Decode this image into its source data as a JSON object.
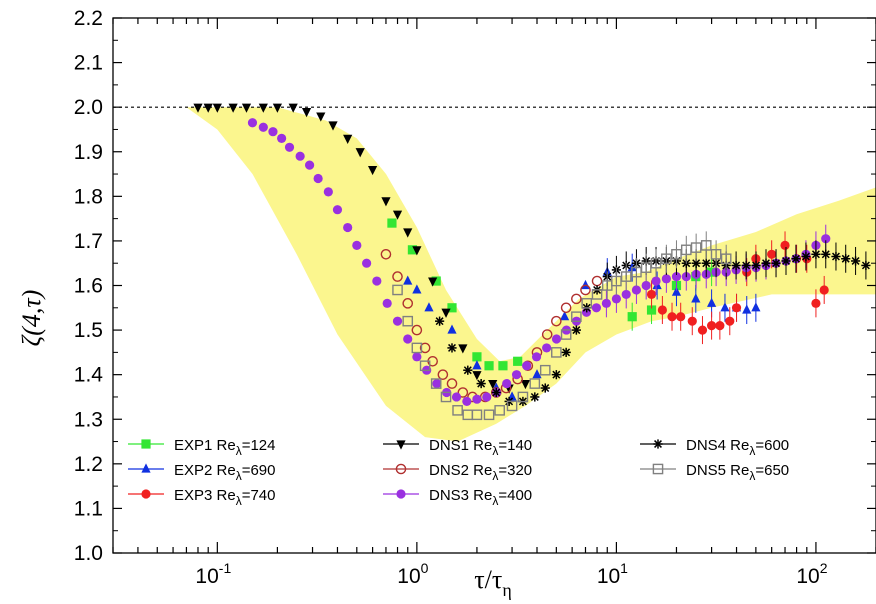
{
  "chart_data": {
    "type": "scatter",
    "title": "",
    "xlabel": "τ/τη",
    "ylabel": "ζ(4,τ)",
    "xscale": "log",
    "xlim": [
      0.03,
      200
    ],
    "ylim": [
      1.0,
      2.2
    ],
    "x_ticks": [
      {
        "value": 0.1,
        "mant": "10",
        "exp": "-1"
      },
      {
        "value": 1,
        "mant": "10",
        "exp": "0"
      },
      {
        "value": 10,
        "mant": "10",
        "exp": "1"
      },
      {
        "value": 100,
        "mant": "10",
        "exp": "2"
      }
    ],
    "y_ticks": [
      "1.0",
      "1.1",
      "1.2",
      "1.3",
      "1.4",
      "1.5",
      "1.6",
      "1.7",
      "1.8",
      "1.9",
      "2.0",
      "2.1",
      "2.2"
    ],
    "reference_line": {
      "y": 2.0,
      "style": "dotted"
    },
    "band": {
      "color": "#fbf68e",
      "upper": [
        [
          0.07,
          2.0
        ],
        [
          0.2,
          2.0
        ],
        [
          0.35,
          1.97
        ],
        [
          0.5,
          1.93
        ],
        [
          0.7,
          1.85
        ],
        [
          1.0,
          1.73
        ],
        [
          1.4,
          1.59
        ],
        [
          2.0,
          1.48
        ],
        [
          2.6,
          1.43
        ],
        [
          3.3,
          1.44
        ],
        [
          4.5,
          1.5
        ],
        [
          6.5,
          1.57
        ],
        [
          10,
          1.62
        ],
        [
          14,
          1.63
        ],
        [
          20,
          1.66
        ],
        [
          30,
          1.69
        ],
        [
          50,
          1.72
        ],
        [
          80,
          1.76
        ],
        [
          130,
          1.79
        ],
        [
          200,
          1.82
        ]
      ],
      "lower": [
        [
          200,
          1.58
        ],
        [
          100,
          1.58
        ],
        [
          60,
          1.58
        ],
        [
          30,
          1.55
        ],
        [
          20,
          1.53
        ],
        [
          15,
          1.52
        ],
        [
          10,
          1.49
        ],
        [
          7,
          1.45
        ],
        [
          5,
          1.38
        ],
        [
          3.5,
          1.33
        ],
        [
          2.5,
          1.29
        ],
        [
          1.6,
          1.25
        ],
        [
          1.1,
          1.26
        ],
        [
          0.7,
          1.33
        ],
        [
          0.4,
          1.49
        ],
        [
          0.25,
          1.67
        ],
        [
          0.15,
          1.85
        ],
        [
          0.1,
          1.95
        ],
        [
          0.07,
          2.0
        ]
      ]
    },
    "series": [
      {
        "name": "EXP1 Re",
        "subscript": "λ",
        "suffix": "=124",
        "color": "#33e633",
        "marker": "square",
        "x": [
          0.75,
          0.95,
          1.25,
          1.5,
          2.0,
          2.3,
          2.7,
          3.2,
          12,
          15,
          20,
          25,
          30
        ],
        "y": [
          1.74,
          1.68,
          1.61,
          1.55,
          1.44,
          1.42,
          1.42,
          1.43,
          1.53,
          1.545,
          1.6,
          1.62,
          1.63
        ]
      },
      {
        "name": "EXP2 Re",
        "subscript": "λ",
        "suffix": "=690",
        "color": "#1030e0",
        "marker": "triangle",
        "x": [
          0.9,
          1.0,
          1.15,
          1.5,
          2.0,
          2.5,
          3.0,
          4.0,
          5.5,
          7.0,
          9.0,
          12,
          16,
          20,
          25,
          30,
          35,
          40,
          45,
          50
        ],
        "y": [
          1.61,
          1.59,
          1.55,
          1.5,
          1.42,
          1.37,
          1.35,
          1.4,
          1.53,
          1.6,
          1.63,
          1.64,
          1.6,
          1.585,
          1.57,
          1.56,
          1.55,
          1.55,
          1.545,
          1.55
        ]
      },
      {
        "name": "EXP3 Re",
        "subscript": "λ",
        "suffix": "=740",
        "color": "#f02020",
        "marker": "circle",
        "x": [
          15,
          17,
          19,
          21,
          24,
          27,
          30,
          33,
          37,
          40,
          45,
          50,
          60,
          70,
          80,
          90,
          100,
          110
        ],
        "y": [
          1.58,
          1.545,
          1.53,
          1.53,
          1.52,
          1.5,
          1.51,
          1.51,
          1.52,
          1.55,
          1.63,
          1.66,
          1.67,
          1.69,
          1.66,
          1.66,
          1.56,
          1.59
        ]
      },
      {
        "name": "DNS1 Re",
        "subscript": "λ",
        "suffix": "=140",
        "color": "#000000",
        "marker": "triangle-down",
        "x": [
          0.08,
          0.09,
          0.1,
          0.12,
          0.14,
          0.17,
          0.2,
          0.24,
          0.28,
          0.33,
          0.38,
          0.45,
          0.52,
          0.6,
          0.7,
          0.8,
          0.9,
          1.0,
          1.2,
          1.4,
          1.7,
          2.0,
          2.4,
          2.9,
          3.5
        ],
        "y": [
          2.0,
          2.0,
          2.0,
          2.0,
          2.0,
          2.0,
          2.0,
          2.0,
          1.99,
          1.98,
          1.96,
          1.93,
          1.9,
          1.86,
          1.79,
          1.76,
          1.72,
          1.68,
          1.61,
          1.54,
          1.46,
          1.4,
          1.38,
          1.37,
          1.38
        ]
      },
      {
        "name": "DNS2 Re",
        "subscript": "λ",
        "suffix": "=320",
        "color": "#b03030",
        "marker": "open-circle",
        "x": [
          0.7,
          0.8,
          0.9,
          1.0,
          1.1,
          1.2,
          1.35,
          1.5,
          1.7,
          1.9,
          2.2,
          2.5,
          2.8,
          3.2,
          3.6,
          4.0,
          4.5,
          5.0,
          5.6,
          6.3,
          7.0,
          8.0
        ],
        "y": [
          1.67,
          1.62,
          1.56,
          1.5,
          1.46,
          1.43,
          1.4,
          1.38,
          1.36,
          1.35,
          1.35,
          1.36,
          1.37,
          1.39,
          1.42,
          1.45,
          1.49,
          1.52,
          1.55,
          1.57,
          1.59,
          1.61
        ]
      },
      {
        "name": "DNS3 Re",
        "subscript": "λ",
        "suffix": "=400",
        "color": "#9a30e0",
        "marker": "circle",
        "x": [
          0.15,
          0.17,
          0.19,
          0.21,
          0.23,
          0.26,
          0.29,
          0.32,
          0.36,
          0.4,
          0.45,
          0.5,
          0.56,
          0.63,
          0.71,
          0.8,
          0.9,
          1.0,
          1.12,
          1.26,
          1.41,
          1.58,
          1.78,
          2.0,
          2.24,
          2.51,
          2.82,
          3.16,
          3.55,
          3.98,
          4.47,
          5.01,
          5.62,
          6.31,
          7.08,
          7.94,
          8.91,
          10,
          11.2,
          12.6,
          14.1,
          15.8,
          17.8,
          20,
          22.4,
          25.1,
          28.2,
          31.6,
          35.5,
          39.8,
          44.7,
          50.1,
          56.2,
          63.1,
          70.8,
          79.4,
          89.1,
          100,
          112
        ],
        "y": [
          1.965,
          1.955,
          1.945,
          1.93,
          1.91,
          1.89,
          1.87,
          1.84,
          1.81,
          1.77,
          1.73,
          1.69,
          1.65,
          1.61,
          1.56,
          1.52,
          1.48,
          1.44,
          1.41,
          1.38,
          1.36,
          1.35,
          1.34,
          1.345,
          1.35,
          1.36,
          1.38,
          1.4,
          1.42,
          1.44,
          1.46,
          1.48,
          1.5,
          1.52,
          1.54,
          1.55,
          1.56,
          1.57,
          1.58,
          1.59,
          1.6,
          1.61,
          1.615,
          1.62,
          1.62,
          1.625,
          1.625,
          1.63,
          1.63,
          1.635,
          1.64,
          1.64,
          1.645,
          1.65,
          1.655,
          1.66,
          1.67,
          1.69,
          1.705
        ]
      },
      {
        "name": "DNS4 Re",
        "subscript": "λ",
        "suffix": "=600",
        "color": "#000000",
        "marker": "asterisk",
        "x": [
          1.3,
          1.5,
          1.8,
          2.1,
          2.5,
          2.9,
          3.4,
          3.9,
          4.4,
          5.0,
          5.6,
          6.3,
          7.1,
          8.0,
          9.0,
          10,
          11.2,
          12.6,
          14.1,
          15.8,
          17.8,
          20,
          22.4,
          25.1,
          28.2,
          31.6,
          35.5,
          39.8,
          44.7,
          50.1,
          56.2,
          63.1,
          70.8,
          79.4,
          89.1,
          100,
          112,
          126,
          141,
          158,
          178
        ],
        "y": [
          1.52,
          1.46,
          1.41,
          1.38,
          1.36,
          1.34,
          1.34,
          1.35,
          1.37,
          1.4,
          1.45,
          1.5,
          1.55,
          1.59,
          1.62,
          1.635,
          1.645,
          1.65,
          1.655,
          1.655,
          1.655,
          1.655,
          1.65,
          1.65,
          1.65,
          1.65,
          1.645,
          1.645,
          1.645,
          1.645,
          1.65,
          1.65,
          1.655,
          1.66,
          1.665,
          1.67,
          1.67,
          1.665,
          1.66,
          1.655,
          1.645
        ]
      },
      {
        "name": "DNS5 Re",
        "subscript": "λ",
        "suffix": "=650",
        "color": "#808080",
        "marker": "open-square",
        "x": [
          0.8,
          0.9,
          1.0,
          1.1,
          1.25,
          1.4,
          1.6,
          1.8,
          2.0,
          2.3,
          2.6,
          3.0,
          3.4,
          3.9,
          4.4,
          5.0,
          5.6,
          6.3,
          7.1,
          8.0,
          9.0,
          10,
          11.2,
          12.6,
          14.1,
          15.8,
          17.8,
          20,
          22.4,
          25.1,
          28.2,
          31.6,
          35.5
        ],
        "y": [
          1.59,
          1.52,
          1.46,
          1.42,
          1.38,
          1.35,
          1.32,
          1.31,
          1.31,
          1.31,
          1.32,
          1.33,
          1.35,
          1.38,
          1.41,
          1.45,
          1.49,
          1.53,
          1.56,
          1.58,
          1.6,
          1.61,
          1.62,
          1.63,
          1.64,
          1.65,
          1.66,
          1.67,
          1.68,
          1.685,
          1.69,
          1.67,
          1.66
        ]
      }
    ],
    "legend": {
      "placement": "bottom-left, three columns"
    }
  }
}
